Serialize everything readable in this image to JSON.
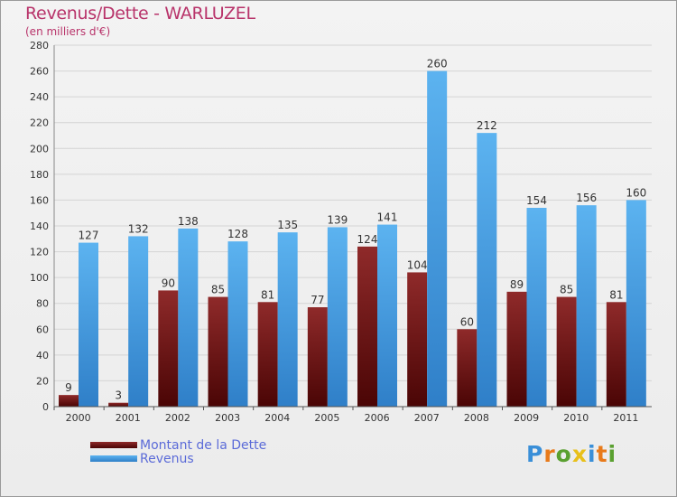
{
  "chart_data": {
    "type": "bar",
    "title": "Revenus/Dette - WARLUZEL",
    "subtitle": "(en milliers d'€)",
    "categories": [
      "2000",
      "2001",
      "2002",
      "2003",
      "2004",
      "2005",
      "2006",
      "2007",
      "2008",
      "2009",
      "2010",
      "2011"
    ],
    "series": [
      {
        "name": "Montant de la Dette",
        "color": "#7a1a1a",
        "values": [
          9,
          3,
          90,
          85,
          81,
          77,
          124,
          104,
          60,
          89,
          85,
          81
        ]
      },
      {
        "name": "Revenus",
        "color": "#4a9fe0",
        "values": [
          127,
          132,
          138,
          128,
          135,
          139,
          141,
          260,
          212,
          154,
          156,
          160
        ]
      }
    ],
    "ylim": [
      0,
      280
    ],
    "yticks": [
      0,
      20,
      40,
      60,
      80,
      100,
      120,
      140,
      160,
      180,
      200,
      220,
      240,
      260,
      280
    ],
    "grid": true,
    "legend_position": "bottom-left"
  },
  "legend": {
    "debt_label": "Montant de la Dette",
    "revenue_label": "Revenus"
  },
  "logo": {
    "letters": [
      "P",
      "r",
      "o",
      "x",
      "i",
      "t",
      "i"
    ],
    "colors": [
      "#3a8fd8",
      "#e87a1a",
      "#5aa030",
      "#e8c01a",
      "#3a8fd8",
      "#e87a1a",
      "#5aa030"
    ]
  }
}
